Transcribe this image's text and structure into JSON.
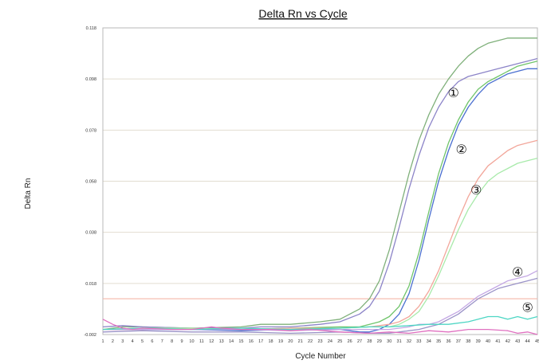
{
  "chart_data": {
    "type": "line",
    "title": "Delta Rn vs Cycle",
    "xlabel": "Cycle Number",
    "ylabel": "Delta Rn",
    "xlim": [
      1,
      45
    ],
    "ylim": [
      -0.002,
      0.118
    ],
    "y_ticks": [
      "-0.002",
      "0.018",
      "0.038",
      "0.058",
      "0.078",
      "0.098",
      "0.118"
    ],
    "x_ticks": [
      "1",
      "2",
      "3",
      "4",
      "5",
      "6",
      "7",
      "8",
      "9",
      "10",
      "11",
      "12",
      "13",
      "14",
      "15",
      "16",
      "17",
      "18",
      "19",
      "20",
      "21",
      "22",
      "23",
      "24",
      "25",
      "26",
      "27",
      "28",
      "29",
      "30",
      "31",
      "32",
      "33",
      "34",
      "35",
      "36",
      "37",
      "38",
      "39",
      "40",
      "41",
      "42",
      "43",
      "44",
      "45"
    ],
    "grid": true,
    "threshold": {
      "y": 0.012,
      "color": "#f4b7a8"
    },
    "series": [
      {
        "color": "#7fb07a",
        "x": [
          1,
          3,
          5,
          10,
          15,
          17,
          20,
          23,
          25,
          27,
          28,
          29,
          30,
          31,
          32,
          33,
          34,
          35,
          36,
          37,
          38,
          39,
          40,
          41,
          42,
          43,
          44,
          45
        ],
        "y": [
          0.0,
          0.001,
          0.001,
          0.0005,
          0.001,
          0.002,
          0.002,
          0.003,
          0.004,
          0.008,
          0.012,
          0.019,
          0.031,
          0.046,
          0.061,
          0.074,
          0.084,
          0.092,
          0.098,
          0.103,
          0.107,
          0.11,
          0.112,
          0.113,
          0.114,
          0.114,
          0.114,
          0.114
        ]
      },
      {
        "color": "#8c84c8",
        "x": [
          1,
          3,
          5,
          10,
          15,
          17,
          20,
          23,
          25,
          27,
          28,
          29,
          30,
          31,
          32,
          33,
          34,
          35,
          36,
          37,
          38,
          39,
          40,
          41,
          42,
          43,
          44,
          45
        ],
        "y": [
          0.001,
          0.0015,
          0.001,
          0.0005,
          0.0005,
          0.001,
          0.001,
          0.002,
          0.003,
          0.006,
          0.009,
          0.015,
          0.026,
          0.04,
          0.055,
          0.068,
          0.079,
          0.087,
          0.093,
          0.097,
          0.099,
          0.1,
          0.101,
          0.102,
          0.103,
          0.104,
          0.105,
          0.106
        ]
      },
      {
        "color": "#6fc46a",
        "x": [
          1,
          5,
          10,
          15,
          20,
          25,
          27,
          28,
          29,
          30,
          31,
          32,
          33,
          34,
          35,
          36,
          37,
          38,
          39,
          40,
          41,
          42,
          43,
          44,
          45
        ],
        "y": [
          0.0,
          0.0005,
          0.0005,
          0.0,
          0.0005,
          0.001,
          0.001,
          0.002,
          0.003,
          0.005,
          0.009,
          0.017,
          0.03,
          0.046,
          0.061,
          0.073,
          0.082,
          0.089,
          0.094,
          0.097,
          0.099,
          0.101,
          0.103,
          0.104,
          0.105
        ]
      },
      {
        "color": "#4a6fd0",
        "x": [
          1,
          5,
          10,
          15,
          20,
          25,
          27,
          28,
          29,
          30,
          31,
          32,
          33,
          34,
          35,
          36,
          37,
          38,
          39,
          40,
          41,
          42,
          43,
          44,
          45
        ],
        "y": [
          0.0,
          0.0,
          0.0,
          -0.0005,
          0.0,
          0.0,
          -0.001,
          -0.001,
          0.0,
          0.002,
          0.006,
          0.014,
          0.027,
          0.043,
          0.058,
          0.07,
          0.08,
          0.087,
          0.092,
          0.096,
          0.098,
          0.1,
          0.101,
          0.102,
          0.102
        ]
      },
      {
        "color": "#f2a69a",
        "x": [
          1,
          5,
          10,
          15,
          20,
          25,
          28,
          30,
          31,
          32,
          33,
          34,
          35,
          36,
          37,
          38,
          39,
          40,
          41,
          42,
          43,
          44,
          45
        ],
        "y": [
          0.0,
          0.0,
          0.0005,
          0.0,
          0.0005,
          0.0005,
          0.001,
          0.002,
          0.003,
          0.005,
          0.009,
          0.015,
          0.023,
          0.033,
          0.043,
          0.052,
          0.059,
          0.064,
          0.067,
          0.07,
          0.072,
          0.073,
          0.074
        ]
      },
      {
        "color": "#a8eaaa",
        "x": [
          1,
          5,
          10,
          15,
          20,
          25,
          28,
          30,
          31,
          32,
          33,
          34,
          35,
          36,
          37,
          38,
          39,
          40,
          41,
          42,
          43,
          44,
          45
        ],
        "y": [
          0.0,
          0.0005,
          0.0005,
          0.0,
          0.0,
          0.0005,
          0.001,
          0.001,
          0.002,
          0.004,
          0.007,
          0.013,
          0.021,
          0.03,
          0.039,
          0.047,
          0.053,
          0.058,
          0.061,
          0.063,
          0.065,
          0.066,
          0.067
        ]
      },
      {
        "color": "#9b93c8",
        "x": [
          1,
          5,
          10,
          15,
          20,
          25,
          28,
          30,
          31,
          32,
          33,
          34,
          35,
          36,
          37,
          38,
          39,
          40,
          41,
          42,
          43,
          44,
          45
        ],
        "y": [
          -0.001,
          -0.0005,
          -0.001,
          -0.001,
          -0.0015,
          -0.001,
          -0.0015,
          -0.0015,
          -0.001,
          -0.0005,
          0.0,
          0.001,
          0.002,
          0.004,
          0.006,
          0.009,
          0.012,
          0.014,
          0.016,
          0.017,
          0.018,
          0.019,
          0.02
        ]
      },
      {
        "color": "#c4a8e4",
        "x": [
          1,
          5,
          10,
          15,
          20,
          25,
          28,
          30,
          31,
          32,
          33,
          34,
          35,
          36,
          37,
          38,
          39,
          40,
          41,
          42,
          43,
          44,
          45
        ],
        "y": [
          0.0,
          0.0,
          0.0,
          0.0,
          -0.0005,
          0.0,
          0.0,
          0.0,
          0.0005,
          0.001,
          0.002,
          0.002,
          0.003,
          0.005,
          0.007,
          0.01,
          0.013,
          0.015,
          0.017,
          0.019,
          0.02,
          0.021,
          0.023
        ]
      },
      {
        "color": "#4ed6c4",
        "x": [
          1,
          5,
          10,
          15,
          20,
          25,
          28,
          30,
          32,
          34,
          36,
          38,
          39,
          40,
          41,
          42,
          43,
          44,
          45
        ],
        "y": [
          0.0,
          0.0005,
          0.0,
          0.0005,
          0.0,
          0.0005,
          0.001,
          0.001,
          0.0015,
          0.002,
          0.002,
          0.003,
          0.004,
          0.005,
          0.005,
          0.004,
          0.005,
          0.004,
          0.005
        ]
      },
      {
        "color": "#e070c0",
        "x": [
          1,
          2,
          3,
          4,
          5,
          8,
          10,
          12,
          13,
          15,
          18,
          20,
          22,
          25,
          28,
          30,
          32,
          34,
          36,
          38,
          40,
          42,
          43,
          44,
          45
        ],
        "y": [
          0.004,
          0.002,
          0.0005,
          0.0,
          0.0005,
          0.0,
          0.0,
          0.001,
          0.0005,
          0.0,
          0.0,
          -0.0005,
          0.0,
          -0.001,
          -0.0015,
          -0.001,
          -0.0015,
          -0.0005,
          -0.001,
          0.0,
          0.0,
          -0.0005,
          -0.0015,
          -0.001,
          -0.002
        ]
      }
    ],
    "annotations": [
      {
        "label": "①",
        "x": 36.5,
        "y": 0.093
      },
      {
        "label": "②",
        "x": 37.3,
        "y": 0.071
      },
      {
        "label": "③",
        "x": 38.8,
        "y": 0.055
      },
      {
        "label": "④",
        "x": 43.0,
        "y": 0.023
      },
      {
        "label": "⑤",
        "x": 44.0,
        "y": 0.009
      }
    ]
  }
}
